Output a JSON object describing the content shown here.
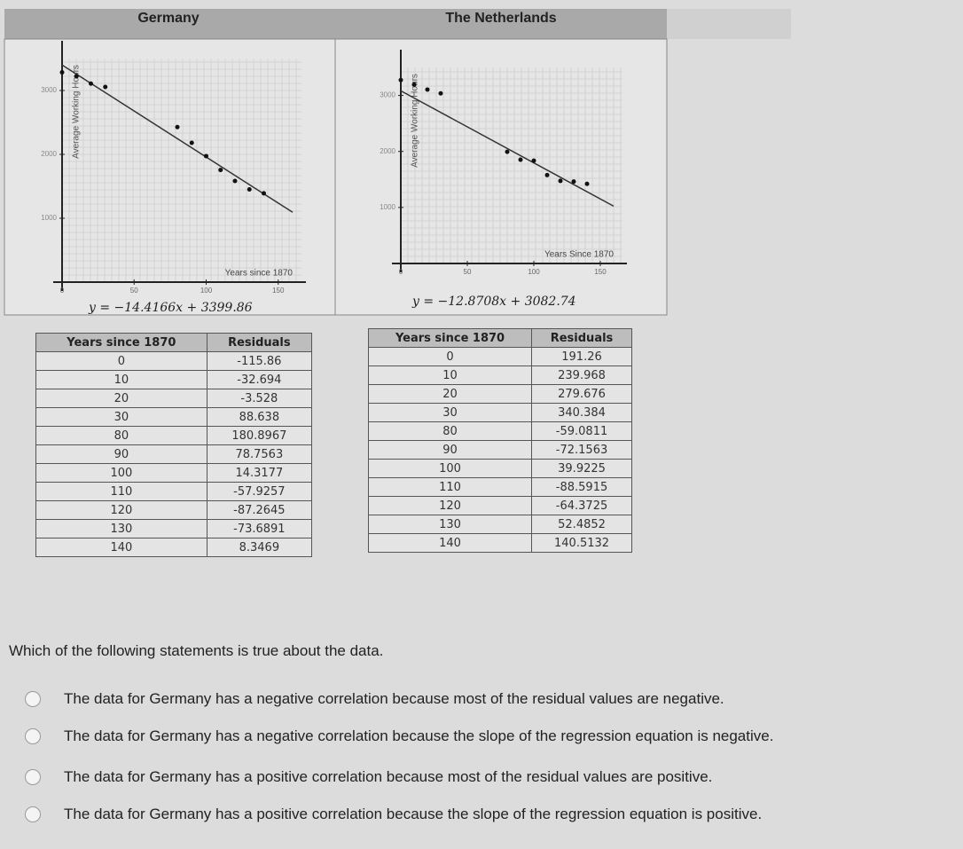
{
  "panels": [
    {
      "title": "Germany",
      "chart": {
        "type": "scatter",
        "x_label": "Years since 1870",
        "y_label": "Average Working Hours",
        "x": [
          0,
          10,
          20,
          30,
          80,
          90,
          100,
          110,
          120,
          130,
          140
        ],
        "y": [
          3284,
          3223,
          3108,
          3056,
          2427,
          2181,
          1973,
          1756,
          1583,
          1452,
          1390
        ],
        "xlim": [
          0,
          160
        ],
        "ylim": [
          0,
          3500
        ],
        "xticks": [
          0,
          50,
          100,
          150
        ],
        "yticks": [
          1000,
          2000,
          3000
        ],
        "trend": {
          "intercept": 3399.86,
          "slope": -14.4166
        },
        "equation": "y = −14.4166x + 3399.86"
      },
      "table": {
        "header": [
          "Years since 1870",
          "Residuals"
        ],
        "rows": [
          [
            "0",
            "-115.86"
          ],
          [
            "10",
            "-32.694"
          ],
          [
            "20",
            "-3.528"
          ],
          [
            "30",
            "88.638"
          ],
          [
            "80",
            "180.8967"
          ],
          [
            "90",
            "78.7563"
          ],
          [
            "100",
            "14.3177"
          ],
          [
            "110",
            "-57.9257"
          ],
          [
            "120",
            "-87.2645"
          ],
          [
            "130",
            "-73.6891"
          ],
          [
            "140",
            "8.3469"
          ]
        ]
      }
    },
    {
      "title": "The Netherlands",
      "chart": {
        "type": "scatter",
        "x_label": "Years Since 1870",
        "y_label": "Average Working Hours",
        "x": [
          0,
          10,
          20,
          30,
          80,
          90,
          100,
          110,
          120,
          130,
          140
        ],
        "y": [
          3274,
          3194,
          3105,
          3037,
          1994,
          1852,
          1836,
          1578,
          1474,
          1462,
          1421
        ],
        "xlim": [
          0,
          160
        ],
        "ylim": [
          0,
          3500
        ],
        "xticks": [
          0,
          50,
          100,
          150
        ],
        "yticks": [
          1000,
          2000,
          3000
        ],
        "trend": {
          "intercept": 3082.74,
          "slope": -12.8708
        },
        "equation": "y = −12.8708x + 3082.74"
      },
      "table": {
        "header": [
          "Years since 1870",
          "Residuals"
        ],
        "rows": [
          [
            "0",
            "191.26"
          ],
          [
            "10",
            "239.968"
          ],
          [
            "20",
            "279.676"
          ],
          [
            "30",
            "340.384"
          ],
          [
            "80",
            "-59.0811"
          ],
          [
            "90",
            "-72.1563"
          ],
          [
            "100",
            "39.9225"
          ],
          [
            "110",
            "-88.5915"
          ],
          [
            "120",
            "-64.3725"
          ],
          [
            "130",
            "52.4852"
          ],
          [
            "140",
            "140.5132"
          ]
        ]
      }
    }
  ],
  "question": "Which of the following statements is true about the data.",
  "options": [
    "The data for Germany has a negative correlation because most of the residual values are negative.",
    "The data for Germany has a negative correlation because the slope of the regression equation is negative.",
    "The data for Germany has a positive correlation because most of the residual values are positive.",
    "The data for Germany has a positive correlation because the slope of the regression equation is positive."
  ]
}
